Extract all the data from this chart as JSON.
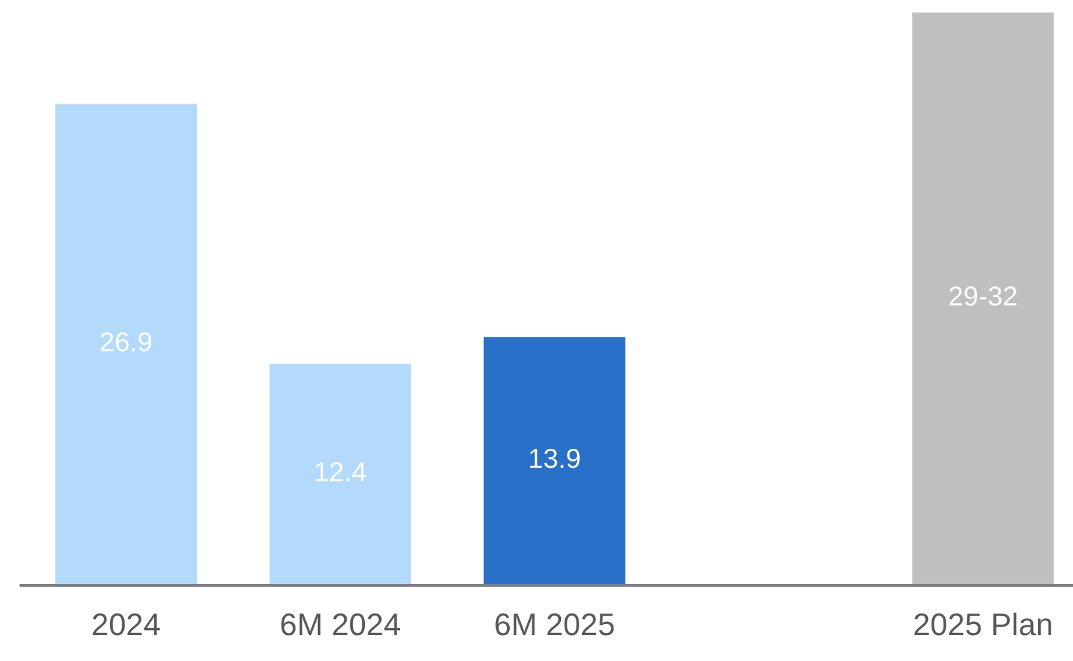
{
  "chart_data": {
    "type": "bar",
    "categories": [
      "2024",
      "6M 2024",
      "6M 2025",
      null,
      "2025 Plan"
    ],
    "values": [
      26.9,
      12.4,
      13.9,
      null,
      32
    ],
    "colors": [
      "#b3dafa",
      "#b3dafa",
      "#2970c8",
      null,
      "#bfbfbf"
    ],
    "value_labels": [
      "26.9",
      "12.4",
      "13.9",
      null,
      "29-32"
    ],
    "grid": false,
    "legend": false
  }
}
